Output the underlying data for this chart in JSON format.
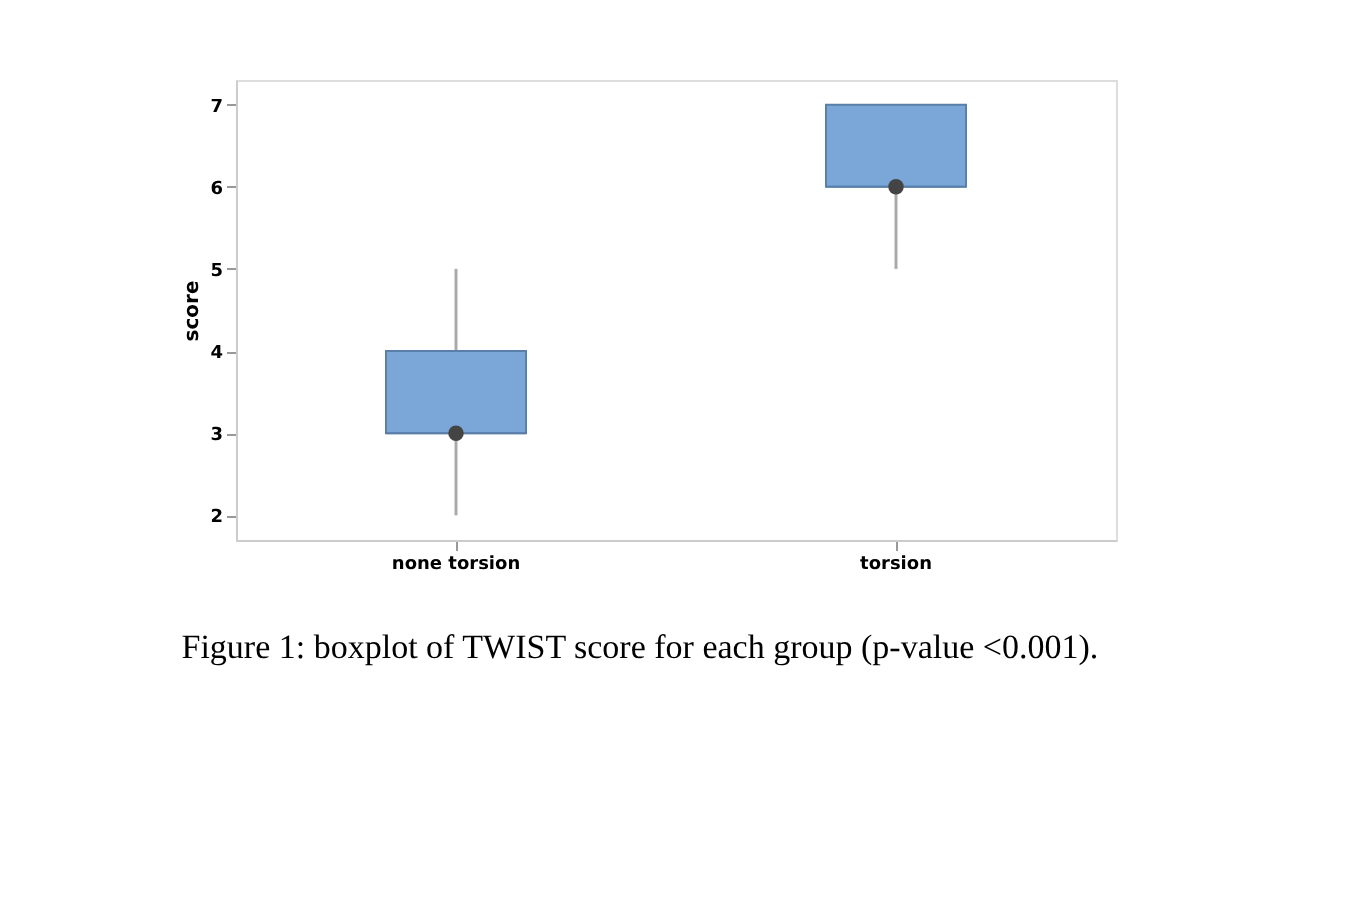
{
  "chart_data": {
    "type": "box",
    "ylabel": "score",
    "categories": [
      "none torsion",
      "torsion"
    ],
    "boxes": [
      {
        "low": 2,
        "q1": 3,
        "median": 3,
        "q3": 4,
        "high": 5,
        "mean": 3
      },
      {
        "low": 5,
        "q1": 6,
        "median": 6,
        "q3": 7,
        "high": 7,
        "mean": 6
      }
    ],
    "color": "#7ba6d8",
    "ylim": [
      1.7,
      7.3
    ],
    "yticks": [
      2,
      3,
      4,
      5,
      6,
      7
    ],
    "grid": false,
    "annotations": [
      "Figure 1: boxplot of TWIST score for each group (p-value <0.001)."
    ]
  }
}
